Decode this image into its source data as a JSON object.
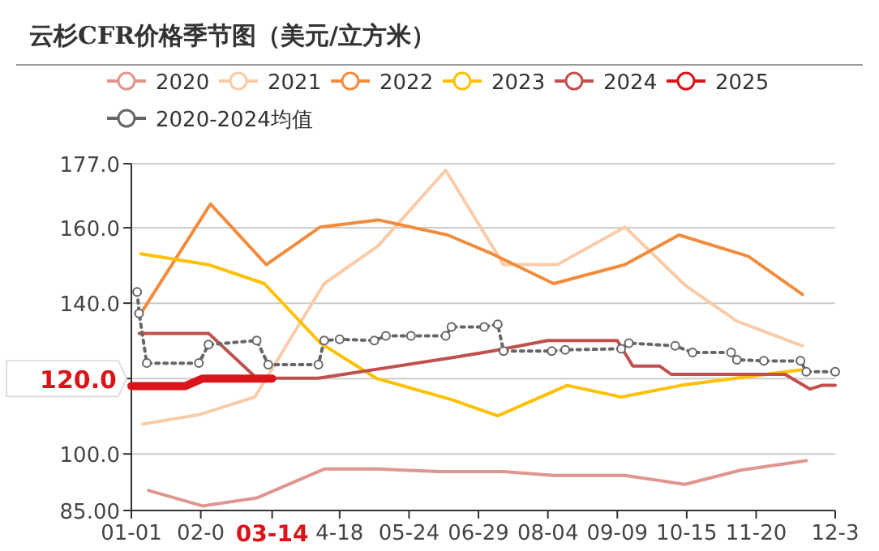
{
  "chart_data": {
    "type": "line",
    "title": "云杉CFR价格季节图（美元/立方米）",
    "xlim": [
      "--01-01",
      "--12-31"
    ],
    "xticks": [
      {
        "value": "--01-01",
        "label": "01-01"
      },
      {
        "value": "--02-06",
        "label": "02-0"
      },
      {
        "value": "--03-14",
        "label": null
      },
      {
        "value": "--04-18",
        "label": "4-18"
      },
      {
        "value": "--05-24",
        "label": "05-24"
      },
      {
        "value": "--06-29",
        "label": "06-29"
      },
      {
        "value": "--08-04",
        "label": "08-04"
      },
      {
        "value": "--09-09",
        "label": "09-09"
      },
      {
        "value": "--10-15",
        "label": "10-15"
      },
      {
        "value": "--11-20",
        "label": "11-20"
      },
      {
        "value": "--12-31",
        "label": "12-3"
      }
    ],
    "ylim": [
      85,
      177
    ],
    "yticks": [
      {
        "value": 85,
        "label": "85.00"
      },
      {
        "value": 100,
        "label": "100.0"
      },
      {
        "value": 120,
        "label": null
      },
      {
        "value": 140,
        "label": "140.0"
      },
      {
        "value": 160,
        "label": "160.0"
      },
      {
        "value": 177,
        "label": "177.0"
      }
    ],
    "grid": "y",
    "legend": "top",
    "line_style": "solid",
    "annotations": [
      "120.0",
      "03-14"
    ],
    "series": [
      {
        "name": "2020",
        "color": "#e0958f",
        "x": [
          "--01-10",
          "--02-07",
          "--03-06",
          "--04-10",
          "--05-08",
          "--06-08",
          "--07-12",
          "--08-07",
          "--09-13",
          "--10-14",
          "--11-12",
          "--12-16"
        ],
        "values": [
          90.3,
          86.2,
          88.3,
          96,
          96,
          95.3,
          95.3,
          94.3,
          94.3,
          91.9,
          95.7,
          98.2
        ]
      },
      {
        "name": "2021",
        "color": "#f9cba8",
        "x": [
          "--01-07",
          "--02-05",
          "--03-05",
          "--04-10",
          "--05-08",
          "--06-12",
          "--07-12",
          "--08-09",
          "--09-13",
          "--10-14",
          "--11-10",
          "--12-14"
        ],
        "values": [
          107.9,
          110.4,
          115.1,
          145.2,
          155.2,
          175.3,
          150.2,
          150.2,
          160.2,
          144.8,
          135.2,
          128.7
        ]
      },
      {
        "name": "2022",
        "color": "#f28c3c",
        "x": [
          "--01-06",
          "--02-11",
          "--03-11",
          "--04-08",
          "--05-08",
          "--06-13",
          "--07-06",
          "--08-07",
          "--09-13",
          "--10-11",
          "--11-16",
          "--12-14"
        ],
        "values": [
          137.3,
          166.3,
          150.2,
          160.2,
          162.1,
          158.1,
          153.1,
          145.2,
          150.2,
          158.1,
          152.4,
          142.3
        ]
      },
      {
        "name": "2023",
        "color": "#ffc000",
        "x": [
          "--01-06",
          "--02-10",
          "--03-10",
          "--04-08",
          "--05-07",
          "--06-15",
          "--07-09",
          "--08-14",
          "--09-11",
          "--10-12",
          "--12-13"
        ],
        "values": [
          153.1,
          150.2,
          145.2,
          129.4,
          120.1,
          114.4,
          110.1,
          118.2,
          115.1,
          118.2,
          122.3
        ]
      },
      {
        "name": "2024",
        "color": "#c0504d",
        "x": [
          "--01-05",
          "--02-10",
          "--03-06",
          "--04-07",
          "--06-15",
          "--07-06",
          "--08-04",
          "--09-09",
          "--09-17",
          "--10-01",
          "--10-07",
          "--12-05",
          "--12-18",
          "--12-24",
          "--12-31"
        ],
        "values": [
          132,
          132,
          120.1,
          120.1,
          125.5,
          127.3,
          130.1,
          130.1,
          123.3,
          123.3,
          121.1,
          121.1,
          117.2,
          118.2,
          118.2
        ]
      },
      {
        "name": "2025",
        "color": "#d9151b",
        "x": [
          "--01-01",
          "--01-29",
          "--02-07",
          "--03-14"
        ],
        "values": [
          118,
          118,
          120,
          120
        ]
      },
      {
        "name": "2020-2024均值",
        "color": "#666666",
        "line_style": "dotted",
        "marker": "circle",
        "x": [
          "--01-04",
          "--01-05",
          "--01-09",
          "--02-05",
          "--02-10",
          "--03-06",
          "--03-12",
          "--04-07",
          "--04-10",
          "--04-18",
          "--05-06",
          "--05-12",
          "--05-25",
          "--06-12",
          "--06-15",
          "--07-02",
          "--07-09",
          "--07-12",
          "--08-06",
          "--08-13",
          "--09-11",
          "--09-15",
          "--10-09",
          "--10-18",
          "--11-07",
          "--11-10",
          "--11-24",
          "--12-13",
          "--12-16",
          "--12-31"
        ],
        "values": [
          143,
          137.3,
          124.1,
          124.1,
          129,
          130.1,
          123.7,
          123.7,
          130.1,
          130.4,
          130.1,
          131.3,
          131.3,
          131.3,
          133.7,
          133.7,
          134.4,
          127.3,
          127.3,
          127.6,
          127.9,
          129.4,
          128.7,
          126.9,
          126.9,
          125,
          124.7,
          124.7,
          121.8,
          121.8
        ]
      }
    ]
  }
}
